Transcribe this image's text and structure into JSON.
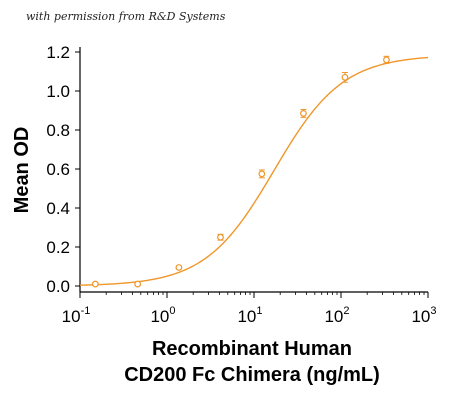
{
  "watermark": "with permission from R&D Systems",
  "colors": {
    "series": "#f0962a",
    "axis": "#000000",
    "background": "#ffffff"
  },
  "chart_data": {
    "type": "scatter",
    "fit": "sigmoidal",
    "xscale": "log",
    "xlim": [
      0.1,
      1000
    ],
    "ylim": [
      0,
      1.2
    ],
    "xticks": [
      {
        "value": 0.1,
        "base": "10",
        "exp": "-1"
      },
      {
        "value": 1,
        "base": "10",
        "exp": "0"
      },
      {
        "value": 10,
        "base": "10",
        "exp": "1"
      },
      {
        "value": 100,
        "base": "10",
        "exp": "2"
      },
      {
        "value": 1000,
        "base": "10",
        "exp": "3"
      }
    ],
    "yticks": [
      "0.0",
      "0.2",
      "0.4",
      "0.6",
      "0.8",
      "1.0",
      "1.2"
    ],
    "ylabel": "Mean OD",
    "xlabel_line1": "Recombinant Human",
    "xlabel_line2": "CD200 Fc Chimera (ng/mL)",
    "grid": false,
    "legend": "none",
    "series": [
      {
        "x": [
          0.15,
          0.46,
          1.37,
          4.12,
          12.3,
          37.0,
          111,
          333
        ],
        "y": [
          0.01,
          0.01,
          0.095,
          0.25,
          0.575,
          0.885,
          1.07,
          1.16
        ],
        "err": [
          0.008,
          0.005,
          0.006,
          0.015,
          0.02,
          0.02,
          0.025,
          0.018
        ]
      }
    ],
    "curve": {
      "bottom": 0.0,
      "top": 1.185,
      "ec50": 17.0,
      "hill": 1.1
    }
  }
}
